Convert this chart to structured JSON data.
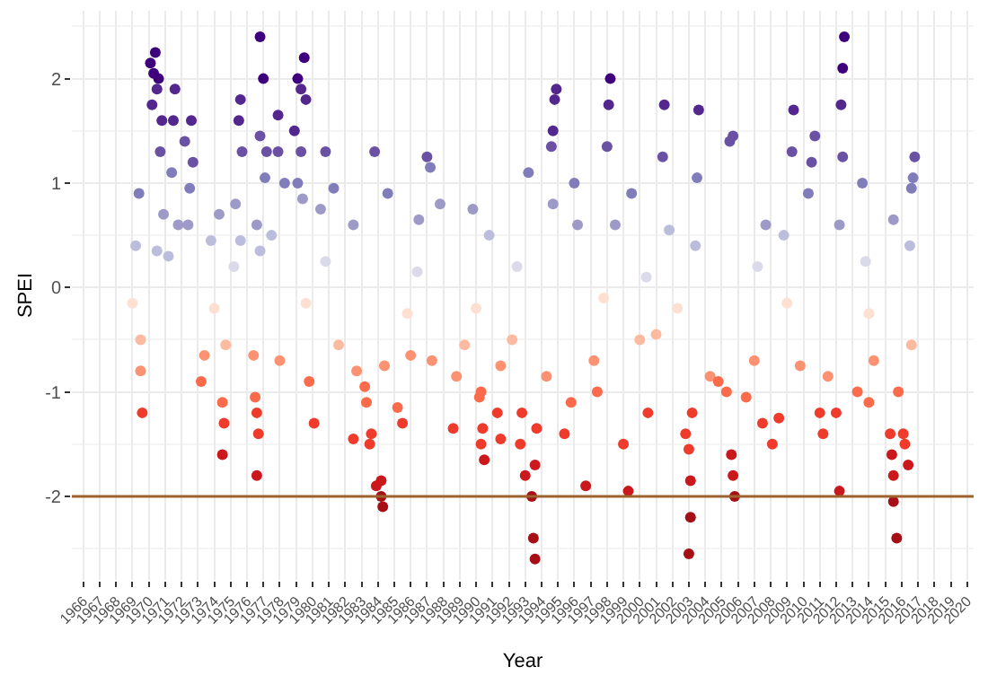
{
  "chart_data": {
    "type": "scatter",
    "xlabel": "Year",
    "ylabel": "SPEI",
    "xlim": [
      1965.3,
      2020.4
    ],
    "ylim": [
      -2.8,
      2.65
    ],
    "xticks": [
      1966,
      1967,
      1968,
      1969,
      1970,
      1971,
      1972,
      1973,
      1974,
      1975,
      1976,
      1977,
      1978,
      1979,
      1980,
      1981,
      1982,
      1983,
      1984,
      1985,
      1986,
      1987,
      1988,
      1989,
      1990,
      1991,
      1992,
      1993,
      1994,
      1995,
      1996,
      1997,
      1998,
      1999,
      2000,
      2001,
      2002,
      2003,
      2004,
      2005,
      2006,
      2007,
      2008,
      2009,
      2010,
      2011,
      2012,
      2013,
      2014,
      2015,
      2016,
      2017,
      2018,
      2019,
      2020
    ],
    "yticks": [
      -2,
      -1,
      0,
      1,
      2
    ],
    "grid": true,
    "marker": "circle",
    "ref_lines": [
      {
        "axis": "y",
        "value": -2,
        "color": "#a0622d"
      }
    ],
    "series": [
      {
        "color": "#3f007d",
        "x": [
          1970.1,
          1970.3,
          1970.4,
          1970.6,
          1976.8,
          1977.0,
          1979.1,
          1979.5,
          1998.2,
          2012.4,
          2012.5
        ],
        "values": [
          2.15,
          2.05,
          2.25,
          2.0,
          2.4,
          2.0,
          2.0,
          2.2,
          2.0,
          2.1,
          2.4
        ]
      },
      {
        "color": "#54278f",
        "x": [
          1970.2,
          1970.5,
          1970.8,
          1971.5,
          1971.6,
          1972.6,
          1975.5,
          1975.6,
          1977.9,
          1978.9,
          1979.3,
          1979.6,
          1994.7,
          1994.8,
          1994.9,
          1998.1,
          2001.5,
          2003.6,
          2009.4,
          2012.3
        ],
        "values": [
          1.75,
          1.9,
          1.6,
          1.6,
          1.9,
          1.6,
          1.6,
          1.8,
          1.65,
          1.5,
          1.9,
          1.8,
          1.5,
          1.8,
          1.9,
          1.75,
          1.75,
          1.7,
          1.7,
          1.75
        ]
      },
      {
        "color": "#6a51a3",
        "x": [
          1970.7,
          1972.2,
          1972.7,
          1975.7,
          1976.8,
          1977.2,
          1977.9,
          1979.3,
          1980.8,
          1983.8,
          1987.0,
          1994.6,
          1998.0,
          2001.4,
          2005.5,
          2005.7,
          2009.3,
          2010.5,
          2010.7,
          2012.4,
          2016.8
        ],
        "values": [
          1.3,
          1.4,
          1.2,
          1.3,
          1.45,
          1.3,
          1.3,
          1.3,
          1.3,
          1.3,
          1.25,
          1.35,
          1.35,
          1.25,
          1.4,
          1.45,
          1.3,
          1.2,
          1.45,
          1.25,
          1.25
        ]
      },
      {
        "color": "#807dba",
        "x": [
          1969.4,
          1971.4,
          1972.5,
          1977.1,
          1978.3,
          1979.1,
          1981.3,
          1984.6,
          1987.2,
          1993.2,
          1996.0,
          1999.5,
          2003.5,
          2010.3,
          2013.6,
          2016.6,
          2016.7
        ],
        "values": [
          0.9,
          1.1,
          0.95,
          1.05,
          1.0,
          1.0,
          0.95,
          0.9,
          1.15,
          1.1,
          1.0,
          0.9,
          1.05,
          0.9,
          1.0,
          0.95,
          1.05
        ]
      },
      {
        "color": "#9e9ac8",
        "x": [
          1970.9,
          1971.8,
          1972.4,
          1974.3,
          1975.3,
          1976.6,
          1979.4,
          1980.5,
          1982.5,
          1986.5,
          1987.8,
          1989.8,
          1994.7,
          1996.2,
          1998.5,
          2007.7,
          2012.2,
          2015.5
        ],
        "values": [
          0.7,
          0.6,
          0.6,
          0.7,
          0.8,
          0.6,
          0.85,
          0.75,
          0.6,
          0.65,
          0.8,
          0.75,
          0.8,
          0.6,
          0.6,
          0.6,
          0.6,
          0.65
        ]
      },
      {
        "color": "#bcbddc",
        "x": [
          1969.2,
          1970.5,
          1971.2,
          1973.8,
          1975.6,
          1976.8,
          1977.5,
          1990.8,
          2001.8,
          2003.4,
          2008.8,
          2016.5
        ],
        "values": [
          0.4,
          0.35,
          0.3,
          0.45,
          0.45,
          0.35,
          0.5,
          0.5,
          0.55,
          0.4,
          0.5,
          0.4
        ]
      },
      {
        "color": "#dadaeb",
        "x": [
          1975.2,
          1980.8,
          1986.4,
          1992.5,
          2000.4,
          2007.2,
          2013.8
        ],
        "values": [
          0.2,
          0.25,
          0.15,
          0.2,
          0.1,
          0.2,
          0.25
        ]
      },
      {
        "color": "#fee0d2",
        "x": [
          1969.0,
          1974.0,
          1979.6,
          1985.8,
          1990.0,
          1997.8,
          2002.3,
          2009.0,
          2014.0
        ],
        "values": [
          -0.15,
          -0.2,
          -0.15,
          -0.25,
          -0.2,
          -0.1,
          -0.2,
          -0.15,
          -0.25
        ]
      },
      {
        "color": "#fcbba1",
        "x": [
          1969.5,
          1974.7,
          1981.6,
          1989.3,
          1992.2,
          2000.0,
          2001.0,
          2016.6
        ],
        "values": [
          -0.5,
          -0.55,
          -0.55,
          -0.55,
          -0.5,
          -0.5,
          -0.45,
          -0.55
        ]
      },
      {
        "color": "#fc9272",
        "x": [
          1969.5,
          1973.4,
          1976.4,
          1978.0,
          1982.7,
          1984.4,
          1986.0,
          1987.3,
          1988.8,
          1991.5,
          1994.3,
          1997.2,
          2004.3,
          2007.0,
          2009.8,
          2011.5,
          2014.3
        ],
        "values": [
          -0.8,
          -0.65,
          -0.65,
          -0.7,
          -0.8,
          -0.75,
          -0.65,
          -0.7,
          -0.85,
          -0.75,
          -0.85,
          -0.7,
          -0.85,
          -0.7,
          -0.75,
          -0.85,
          -0.7
        ]
      },
      {
        "color": "#fb6a4a",
        "x": [
          1973.2,
          1974.5,
          1976.5,
          1979.8,
          1983.2,
          1983.3,
          1985.2,
          1990.2,
          1990.3,
          1995.8,
          1997.4,
          2004.8,
          2005.3,
          2006.5,
          2013.3,
          2014.0,
          2015.8
        ],
        "values": [
          -0.9,
          -1.1,
          -1.05,
          -0.9,
          -0.95,
          -1.1,
          -1.15,
          -1.05,
          -1.0,
          -1.1,
          -1.0,
          -0.9,
          -1.0,
          -1.05,
          -1.0,
          -1.1,
          -1.0
        ]
      },
      {
        "color": "#ef3b2c",
        "x": [
          1969.6,
          1974.6,
          1976.6,
          1976.7,
          1980.1,
          1982.5,
          1983.5,
          1983.6,
          1985.5,
          1988.6,
          1990.3,
          1990.4,
          1991.3,
          1991.5,
          1992.7,
          1992.8,
          1993.7,
          1995.4,
          1999.0,
          2000.5,
          2002.8,
          2003.0,
          2003.2,
          2007.5,
          2008.1,
          2008.5,
          2011.0,
          2011.2,
          2012.0,
          2015.3,
          2016.1,
          2016.2
        ],
        "values": [
          -1.2,
          -1.3,
          -1.2,
          -1.4,
          -1.3,
          -1.45,
          -1.5,
          -1.4,
          -1.3,
          -1.35,
          -1.5,
          -1.35,
          -1.2,
          -1.45,
          -1.5,
          -1.2,
          -1.35,
          -1.4,
          -1.5,
          -1.2,
          -1.4,
          -1.55,
          -1.2,
          -1.3,
          -1.5,
          -1.25,
          -1.2,
          -1.4,
          -1.2,
          -1.4,
          -1.4,
          -1.5
        ]
      },
      {
        "color": "#cb181d",
        "x": [
          1974.5,
          1976.6,
          1983.9,
          1984.2,
          1990.5,
          1993.0,
          1993.6,
          1996.7,
          1999.3,
          2003.1,
          2005.6,
          2005.7,
          2012.2,
          2015.4,
          2015.5,
          2016.4
        ],
        "values": [
          -1.6,
          -1.8,
          -1.9,
          -1.85,
          -1.65,
          -1.8,
          -1.7,
          -1.9,
          -1.95,
          -1.85,
          -1.6,
          -1.8,
          -1.95,
          -1.6,
          -1.8,
          -1.7
        ]
      },
      {
        "color": "#a50f15",
        "x": [
          1984.2,
          1984.3,
          1993.4,
          1993.5,
          1993.6,
          2003.0,
          2003.1,
          2005.8,
          2015.5,
          2015.7
        ],
        "values": [
          -2.0,
          -2.1,
          -2.0,
          -2.4,
          -2.6,
          -2.55,
          -2.2,
          -2.0,
          -2.05,
          -2.4
        ]
      }
    ]
  }
}
